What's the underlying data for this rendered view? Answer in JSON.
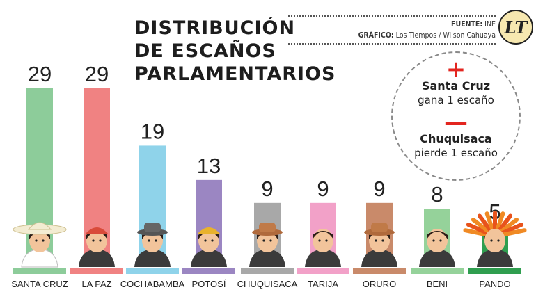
{
  "title_lines": [
    "DISTRIBUCIÓN",
    "DE ESCAÑOS",
    "PARLAMENTARIOS"
  ],
  "credits": {
    "source_label": "FUENTE:",
    "source": "INE",
    "graphic_label": "GRÁFICO:",
    "graphic": "Los Tiempos / Wilson Cahuaya"
  },
  "logo": {
    "text": "LT",
    "icon": "los-tiempos-logo"
  },
  "notes": [
    {
      "symbol": "+",
      "place": "Santa Cruz",
      "action": "gana 1 escaño"
    },
    {
      "symbol": "—",
      "place": "Chuquisaca",
      "action": "pierde 1 escaño"
    }
  ],
  "chart_data": {
    "type": "bar",
    "title": "DISTRIBUCIÓN DE ESCAÑOS PARLAMENTARIOS",
    "categories": [
      "SANTA CRUZ",
      "LA PAZ",
      "COCHABAMBA",
      "POTOSÍ",
      "CHUQUISACA",
      "TARIJA",
      "ORURO",
      "BENI",
      "PANDO"
    ],
    "values": [
      29,
      29,
      19,
      13,
      9,
      9,
      9,
      8,
      5
    ],
    "colors": [
      "#8dcc9a",
      "#f08282",
      "#8fd3ea",
      "#9b86c2",
      "#a8a8a8",
      "#f2a1c8",
      "#c98a6a",
      "#95d29a",
      "#2f9e4f"
    ],
    "value_labels": [
      "29",
      "29",
      "19",
      "13",
      "9",
      "9",
      "9",
      "8",
      "5"
    ],
    "ylim": [
      0,
      29
    ],
    "grid": false,
    "legend": "none"
  }
}
